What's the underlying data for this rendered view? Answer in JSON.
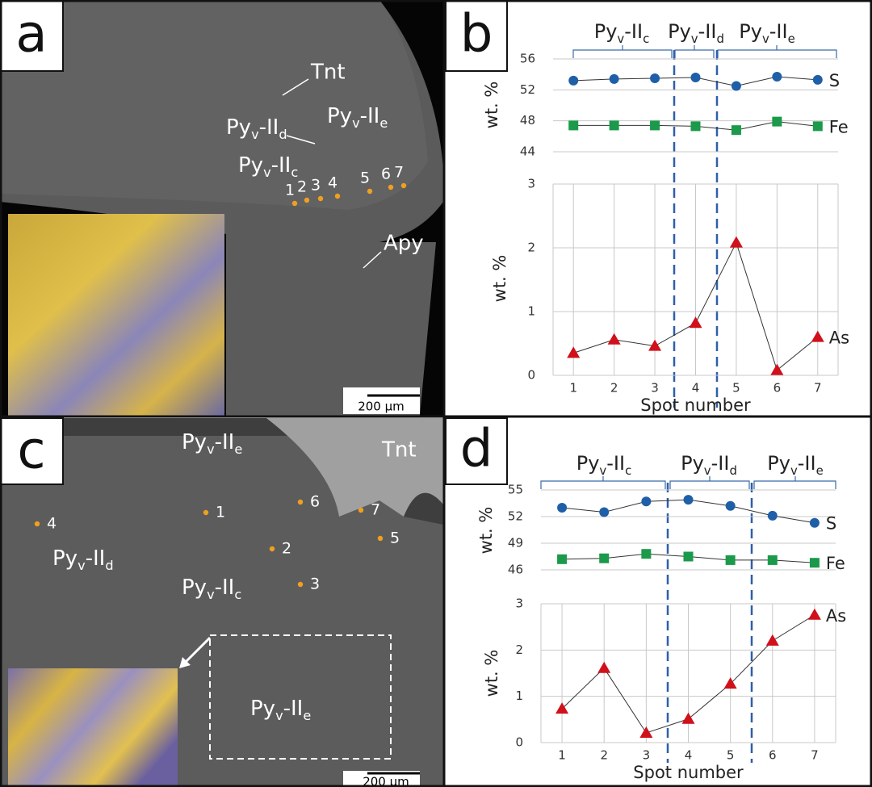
{
  "chart_data": [
    {
      "type": "line",
      "ylabel": "wt. %",
      "x": [
        1,
        2,
        3,
        4,
        5,
        6,
        7
      ],
      "xlim": [
        0.5,
        7.5
      ],
      "ylim": [
        44,
        56
      ],
      "yticks": [
        44,
        48,
        52,
        56
      ],
      "xgrid": false,
      "ygrid": true,
      "series": [
        {
          "name": "S",
          "color": "#1f5fa8",
          "marker": "circle",
          "values": [
            53.2,
            53.4,
            53.5,
            53.6,
            52.5,
            53.7,
            53.3
          ]
        },
        {
          "name": "Fe",
          "color": "#1a9a4a",
          "marker": "square",
          "values": [
            47.4,
            47.4,
            47.4,
            47.3,
            46.8,
            47.9,
            47.3
          ]
        }
      ]
    },
    {
      "type": "line",
      "ylabel": "wt. %",
      "xlabel": "Spot number",
      "x": [
        1,
        2,
        3,
        4,
        5,
        6,
        7
      ],
      "xlim": [
        0.5,
        7.5
      ],
      "xticks": [
        1,
        2,
        3,
        4,
        5,
        6,
        7
      ],
      "ylim": [
        0,
        3
      ],
      "yticks": [
        0,
        1,
        2,
        3
      ],
      "xgrid": true,
      "ygrid": true,
      "series": [
        {
          "name": "As",
          "color": "#d0101a",
          "marker": "triangle",
          "values": [
            0.35,
            0.56,
            0.46,
            0.82,
            2.08,
            0.08,
            0.6
          ]
        }
      ]
    },
    {
      "type": "line",
      "ylabel": "wt. %",
      "x": [
        1,
        2,
        3,
        4,
        5,
        6,
        7
      ],
      "xlim": [
        0.5,
        7.5
      ],
      "ylim": [
        46,
        55
      ],
      "yticks": [
        46,
        49,
        52,
        55
      ],
      "xgrid": false,
      "ygrid": true,
      "series": [
        {
          "name": "S",
          "color": "#1f5fa8",
          "marker": "circle",
          "values": [
            53.0,
            52.5,
            53.7,
            53.9,
            53.2,
            52.1,
            51.3
          ]
        },
        {
          "name": "Fe",
          "color": "#1a9a4a",
          "marker": "square",
          "values": [
            47.2,
            47.3,
            47.8,
            47.5,
            47.1,
            47.1,
            46.8
          ]
        }
      ]
    },
    {
      "type": "line",
      "ylabel": "wt. %",
      "xlabel": "Spot number",
      "x": [
        1,
        2,
        3,
        4,
        5,
        6,
        7
      ],
      "xlim": [
        0.5,
        7.5
      ],
      "xticks": [
        1,
        2,
        3,
        4,
        5,
        6,
        7
      ],
      "ylim": [
        0,
        3
      ],
      "yticks": [
        0,
        1,
        2,
        3
      ],
      "xgrid": true,
      "ygrid": true,
      "series": [
        {
          "name": "As",
          "color": "#d0101a",
          "marker": "triangle",
          "values": [
            0.73,
            1.61,
            0.21,
            0.51,
            1.27,
            2.2,
            2.76
          ]
        }
      ]
    }
  ],
  "panels": {
    "a": {
      "letter": "a",
      "tnt": "Tnt",
      "apy": "Apy",
      "ii_e": [
        "Py",
        "v",
        "-II",
        "e"
      ],
      "ii_d": [
        "Py",
        "v",
        "-II",
        "d"
      ],
      "ii_c": [
        "Py",
        "v",
        "-II",
        "c"
      ],
      "spots": [
        "1",
        "2",
        "3",
        "4",
        "5",
        "6",
        "7"
      ],
      "scale": "200 µm"
    },
    "b": {
      "letter": "b",
      "groups": [
        [
          "Py",
          "v",
          "-II",
          "c"
        ],
        [
          "Py",
          "v",
          "-II",
          "d"
        ],
        [
          "Py",
          "v",
          "-II",
          "e"
        ]
      ]
    },
    "c": {
      "letter": "c",
      "tnt": "Tnt",
      "ii_e_top": [
        "Py",
        "v",
        "-II",
        "e"
      ],
      "ii_d": [
        "Py",
        "v",
        "-II",
        "d"
      ],
      "ii_c": [
        "Py",
        "v",
        "-II",
        "c"
      ],
      "ii_e_box": [
        "Py",
        "v",
        "-II",
        "e"
      ],
      "spots": [
        "1",
        "2",
        "3",
        "4",
        "5",
        "6",
        "7"
      ],
      "scale": "200 µm"
    },
    "d": {
      "letter": "d",
      "groups": [
        [
          "Py",
          "v",
          "-II",
          "c"
        ],
        [
          "Py",
          "v",
          "-II",
          "d"
        ],
        [
          "Py",
          "v",
          "-II",
          "e"
        ]
      ]
    }
  }
}
